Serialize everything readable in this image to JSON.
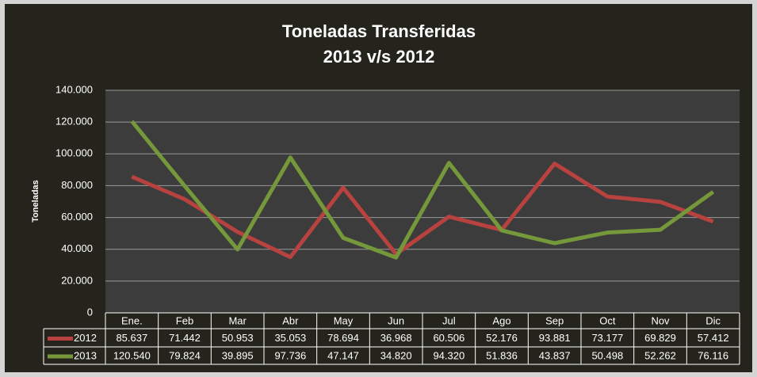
{
  "chart_data": {
    "type": "line",
    "title": "Toneladas Transferidas",
    "subtitle": "2013 v/s 2012",
    "ylabel": "Toneladas",
    "categories": [
      "Ene.",
      "Feb",
      "Mar",
      "Abr",
      "May",
      "Jun",
      "Jul",
      "Ago",
      "Sep",
      "Oct",
      "Nov",
      "Dic"
    ],
    "series": [
      {
        "name": "2012",
        "color": "#b8423f",
        "values": [
          85637,
          71442,
          50953,
          35053,
          78694,
          36968,
          60506,
          52176,
          93881,
          73177,
          69829,
          57412
        ],
        "value_labels": [
          "85.637",
          "71.442",
          "50.953",
          "35.053",
          "78.694",
          "36.968",
          "60.506",
          "52.176",
          "93.881",
          "73.177",
          "69.829",
          "57.412"
        ]
      },
      {
        "name": "2013",
        "color": "#75983a",
        "values": [
          120540,
          79824,
          39895,
          97736,
          47147,
          34820,
          94320,
          51836,
          43837,
          50498,
          52262,
          76116
        ],
        "value_labels": [
          "120.540",
          "79.824",
          "39.895",
          "97.736",
          "47.147",
          "34.820",
          "94.320",
          "51.836",
          "43.837",
          "50.498",
          "52.262",
          "76.116"
        ]
      }
    ],
    "ylim": [
      0,
      140000
    ],
    "yticks": [
      0,
      {
        "value": 20000,
        "label": "20.000"
      },
      {
        "value": 40000,
        "label": "40.000"
      },
      {
        "value": 60000,
        "label": "60.000"
      },
      {
        "value": 80000,
        "label": "80.000"
      },
      {
        "value": 100000,
        "label": "100.000"
      },
      {
        "value": 120000,
        "label": "120.000"
      },
      {
        "value": 140000,
        "label": "140.000"
      }
    ],
    "grid": true
  }
}
